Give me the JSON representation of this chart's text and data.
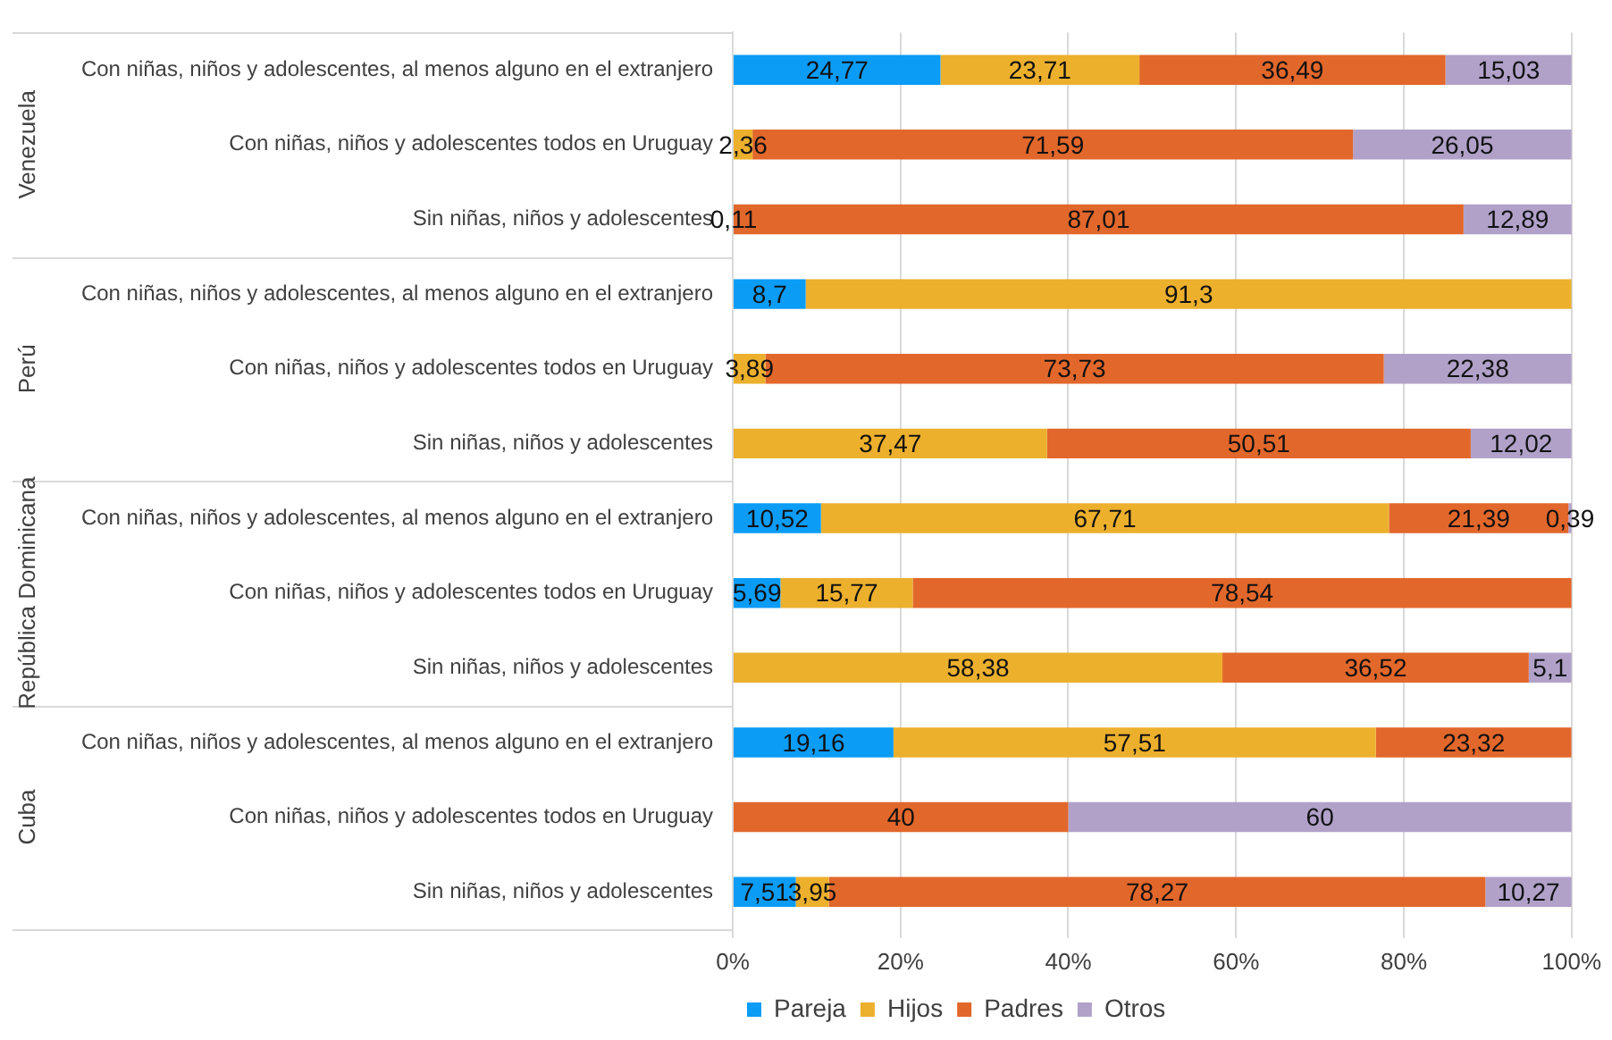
{
  "chart_data": {
    "type": "bar",
    "orientation": "horizontal",
    "stacked": true,
    "categories": [
      "Con niñas, niños y adolescentes, al menos alguno en el extranjero",
      "Con niñas, niños y adolescentes todos en Uruguay",
      "Sin niñas, niños y adolescentes",
      "Con niñas, niños y adolescentes, al menos alguno en el extranjero",
      "Con niñas, niños y adolescentes todos en Uruguay",
      "Sin niñas, niños y adolescentes",
      "Con niñas, niños y adolescentes, al menos alguno en el extranjero",
      "Con niñas, niños y adolescentes todos en Uruguay",
      "Sin niñas, niños y adolescentes",
      "Con niñas, niños y adolescentes, al menos alguno en el extranjero",
      "Con niñas, niños y adolescentes todos en Uruguay",
      "Sin niñas, niños y adolescentes"
    ],
    "annotations": [
      "Venezuela",
      "Perú",
      "República Dominicana",
      "Cuba"
    ],
    "series": [
      {
        "name": "Pareja",
        "color": "#0b9cf6",
        "values": [
          24.77,
          null,
          0.11,
          8.7,
          null,
          null,
          10.52,
          5.69,
          null,
          19.16,
          null,
          7.51
        ],
        "value_labels": [
          "24,77",
          null,
          "0,11",
          "8,7",
          null,
          null,
          "10,52",
          "5,69",
          null,
          "19,16",
          null,
          "7,51"
        ]
      },
      {
        "name": "Hijos",
        "color": "#ecb02d",
        "values": [
          23.71,
          2.36,
          null,
          91.3,
          3.89,
          37.47,
          67.71,
          15.77,
          58.38,
          57.51,
          null,
          3.95
        ],
        "value_labels": [
          "23,71",
          "2,36",
          null,
          "91,3",
          "3,89",
          "37,47",
          "67,71",
          "15,77",
          "58,38",
          "57,51",
          null,
          "3,95"
        ]
      },
      {
        "name": "Padres",
        "color": "#e2672b",
        "values": [
          36.49,
          71.59,
          87.01,
          null,
          73.73,
          50.51,
          21.39,
          78.54,
          36.52,
          23.32,
          40,
          78.27
        ],
        "value_labels": [
          "36,49",
          "71,59",
          "87,01",
          null,
          "73,73",
          "50,51",
          "21,39",
          "78,54",
          "36,52",
          "23,32",
          "40",
          "78,27"
        ]
      },
      {
        "name": "Otros",
        "color": "#b1a1c9",
        "values": [
          15.03,
          26.05,
          12.89,
          null,
          22.38,
          12.02,
          0.39,
          null,
          5.1,
          null,
          60,
          10.27
        ],
        "value_labels": [
          "15,03",
          "26,05",
          "12,89",
          null,
          "22,38",
          "12,02",
          "0,39",
          null,
          "5,1",
          null,
          "60",
          "10,27"
        ]
      }
    ],
    "xlim": [
      0,
      100.01
    ],
    "xticks": [
      {
        "value": 0,
        "label": "0%"
      },
      {
        "value": 20,
        "label": "20%"
      },
      {
        "value": 40,
        "label": "40%"
      },
      {
        "value": 60,
        "label": "60%"
      },
      {
        "value": 80,
        "label": "80%"
      },
      {
        "value": 100,
        "label": "100%"
      }
    ],
    "grid": "x",
    "legend": "bottom"
  }
}
